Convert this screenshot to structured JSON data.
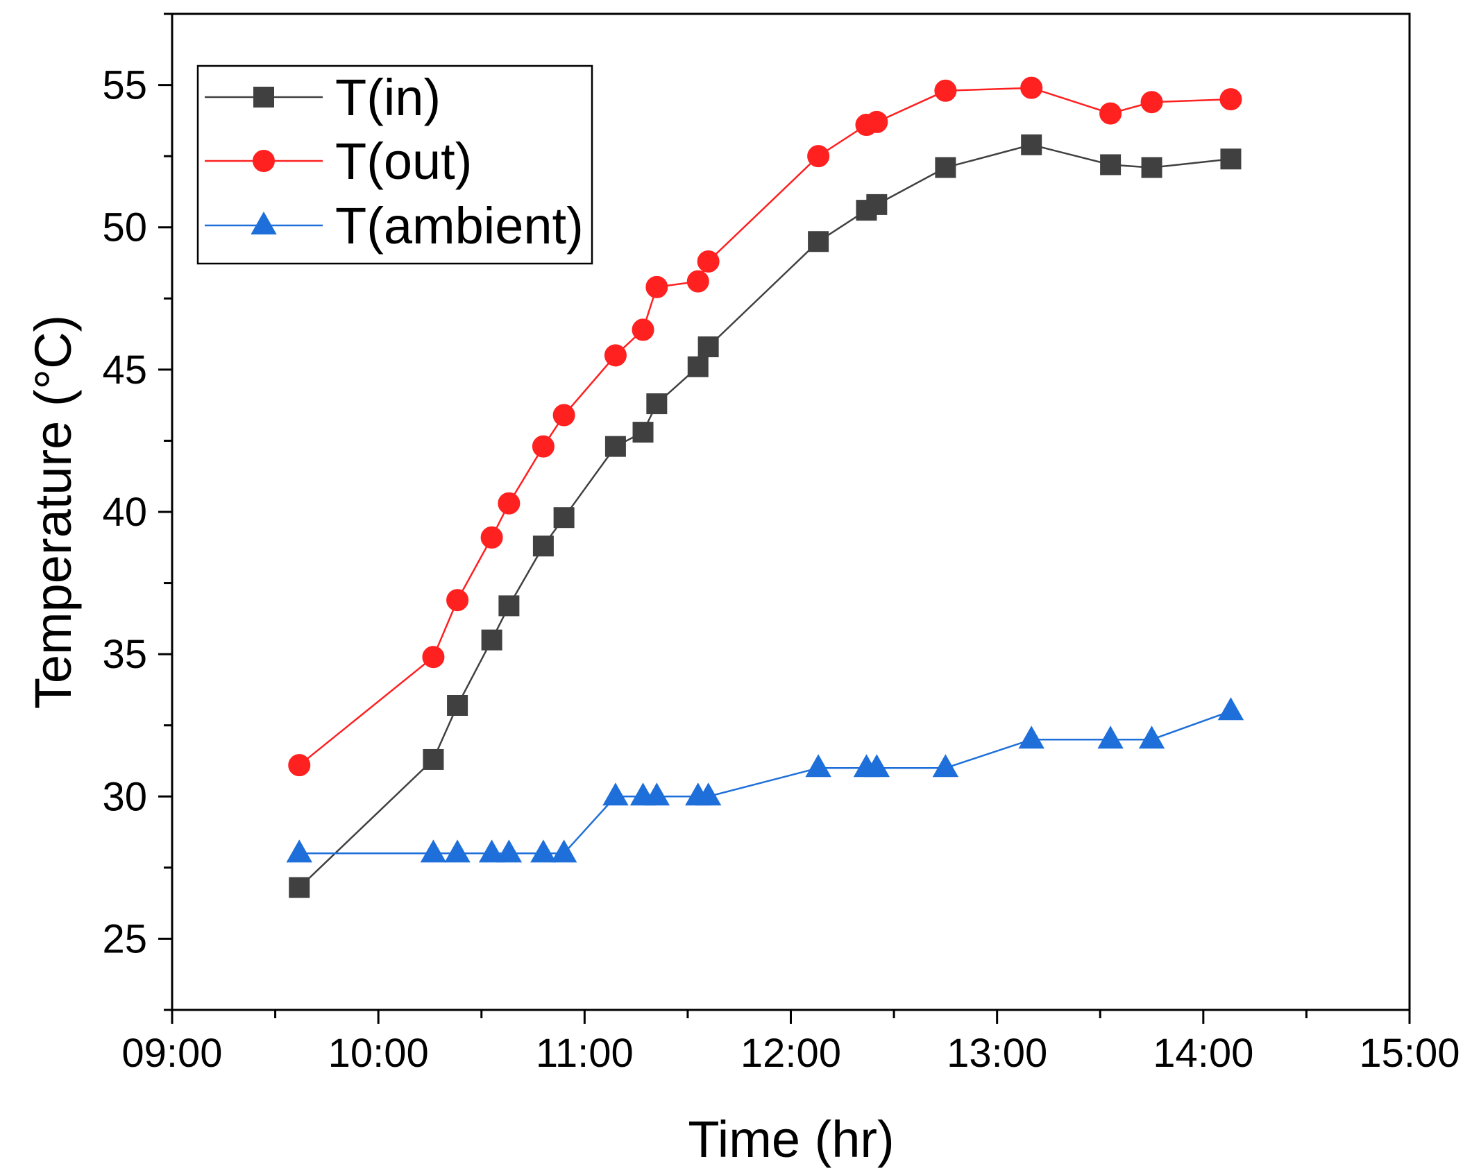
{
  "chart_data": {
    "type": "line",
    "title": "",
    "xlabel": "Time (hr)",
    "ylabel": "Temperature (°C)",
    "xlim": [
      "09:00",
      "15:00"
    ],
    "ylim": [
      22.5,
      57.5
    ],
    "x_ticks": [
      "09:00",
      "10:00",
      "11:00",
      "12:00",
      "13:00",
      "14:00",
      "15:00"
    ],
    "y_ticks": [
      "25",
      "30",
      "35",
      "40",
      "45",
      "50",
      "55"
    ],
    "legend_position": "top-left",
    "grid": false,
    "series": [
      {
        "name": "T(in)",
        "color": "#404040",
        "marker": "square",
        "points": [
          [
            "09:37",
            26.8
          ],
          [
            "10:16",
            31.3
          ],
          [
            "10:23",
            33.2
          ],
          [
            "10:33",
            35.5
          ],
          [
            "10:38",
            36.7
          ],
          [
            "10:48",
            38.8
          ],
          [
            "10:54",
            39.8
          ],
          [
            "11:09",
            42.3
          ],
          [
            "11:17",
            42.8
          ],
          [
            "11:21",
            43.8
          ],
          [
            "11:33",
            45.1
          ],
          [
            "11:36",
            45.8
          ],
          [
            "12:08",
            49.5
          ],
          [
            "12:22",
            50.6
          ],
          [
            "12:25",
            50.8
          ],
          [
            "12:45",
            52.1
          ],
          [
            "13:10",
            52.9
          ],
          [
            "13:33",
            52.2
          ],
          [
            "13:45",
            52.1
          ],
          [
            "14:08",
            52.4
          ]
        ]
      },
      {
        "name": "T(out)",
        "color": "#ff2020",
        "marker": "circle",
        "points": [
          [
            "09:37",
            31.1
          ],
          [
            "10:16",
            34.9
          ],
          [
            "10:23",
            36.9
          ],
          [
            "10:33",
            39.1
          ],
          [
            "10:38",
            40.3
          ],
          [
            "10:48",
            42.3
          ],
          [
            "10:54",
            43.4
          ],
          [
            "11:09",
            45.5
          ],
          [
            "11:17",
            46.4
          ],
          [
            "11:21",
            47.9
          ],
          [
            "11:33",
            48.1
          ],
          [
            "11:36",
            48.8
          ],
          [
            "12:08",
            52.5
          ],
          [
            "12:22",
            53.6
          ],
          [
            "12:25",
            53.7
          ],
          [
            "12:45",
            54.8
          ],
          [
            "13:10",
            54.9
          ],
          [
            "13:33",
            54.0
          ],
          [
            "13:45",
            54.4
          ],
          [
            "14:08",
            54.5
          ]
        ]
      },
      {
        "name": "T(ambient)",
        "color": "#1e6fd9",
        "marker": "triangle",
        "points": [
          [
            "09:37",
            28
          ],
          [
            "10:16",
            28
          ],
          [
            "10:23",
            28
          ],
          [
            "10:33",
            28
          ],
          [
            "10:38",
            28
          ],
          [
            "10:48",
            28
          ],
          [
            "10:54",
            28
          ],
          [
            "11:09",
            30
          ],
          [
            "11:17",
            30
          ],
          [
            "11:21",
            30
          ],
          [
            "11:33",
            30
          ],
          [
            "11:36",
            30
          ],
          [
            "12:08",
            31
          ],
          [
            "12:22",
            31
          ],
          [
            "12:25",
            31
          ],
          [
            "12:45",
            31
          ],
          [
            "13:10",
            32
          ],
          [
            "13:33",
            32
          ],
          [
            "13:45",
            32
          ],
          [
            "14:08",
            33
          ]
        ]
      }
    ]
  }
}
